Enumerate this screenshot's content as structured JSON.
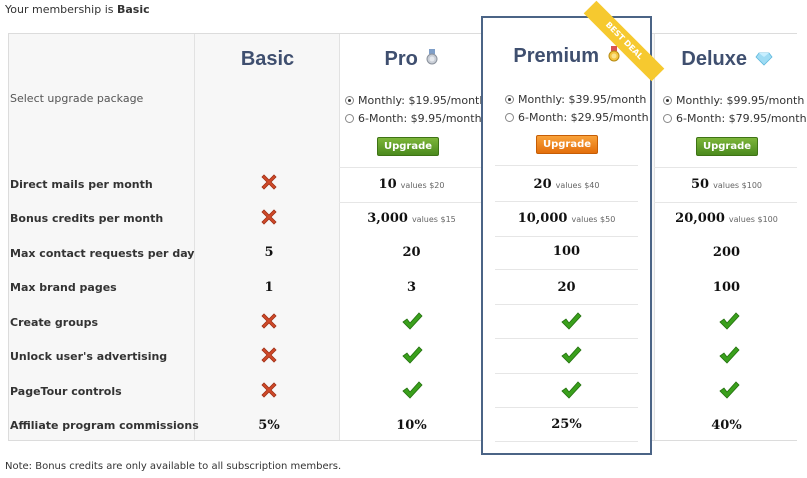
{
  "header": {
    "membership_prefix": "Your membership is ",
    "membership_level": "Basic"
  },
  "plans": [
    {
      "name": "Basic"
    },
    {
      "name": "Pro",
      "badge_icon": "silver-medal-icon"
    },
    {
      "name": "Premium",
      "badge_icon": "gold-medal-icon",
      "ribbon": "BEST DEAL"
    },
    {
      "name": "Deluxe",
      "badge_icon": "diamond-icon"
    }
  ],
  "upgrade": {
    "label": "Select upgrade package",
    "button_label": "Upgrade",
    "pro": {
      "monthly": "Monthly: $19.95/month",
      "six_month": "6-Month: $9.95/month",
      "selected": "monthly"
    },
    "premium": {
      "monthly": "Monthly: $39.95/month",
      "six_month": "6-Month: $29.95/month",
      "selected": "monthly"
    },
    "deluxe": {
      "monthly": "Monthly: $99.95/month",
      "six_month": "6-Month: $79.95/month",
      "selected": "monthly"
    }
  },
  "rows": [
    {
      "label": "Direct mails per month",
      "basic": "cross",
      "pro": "10",
      "pro_sub": "values $20",
      "premium": "20",
      "premium_sub": "values $40",
      "deluxe": "50",
      "deluxe_sub": "values $100"
    },
    {
      "label": "Bonus credits per month",
      "basic": "cross",
      "pro": "3,000",
      "pro_sub": "values $15",
      "premium": "10,000",
      "premium_sub": "values $50",
      "deluxe": "20,000",
      "deluxe_sub": "values $100"
    },
    {
      "label": "Max contact requests per day",
      "basic": "5",
      "pro": "20",
      "premium": "100",
      "deluxe": "200"
    },
    {
      "label": "Max brand pages",
      "basic": "1",
      "pro": "3",
      "premium": "20",
      "deluxe": "100"
    },
    {
      "label": "Create groups",
      "basic": "cross",
      "pro": "check",
      "premium": "check",
      "deluxe": "check"
    },
    {
      "label": "Unlock user's advertising",
      "basic": "cross",
      "pro": "check",
      "premium": "check",
      "deluxe": "check"
    },
    {
      "label": "PageTour controls",
      "basic": "cross",
      "pro": "check",
      "premium": "check",
      "deluxe": "check"
    },
    {
      "label": "Affiliate program commissions",
      "basic": "5%",
      "pro": "10%",
      "premium": "25%",
      "deluxe": "40%"
    }
  ],
  "footer": {
    "note": "Note: Bonus credits are only available to all subscription members."
  },
  "colors": {
    "accent_border": "#4b6486",
    "upgrade_green": "#5c9a26",
    "upgrade_orange": "#f28a1c",
    "check_green": "#3aa01c",
    "cross_red": "#d04a2a",
    "ribbon": "#f6c92f"
  }
}
